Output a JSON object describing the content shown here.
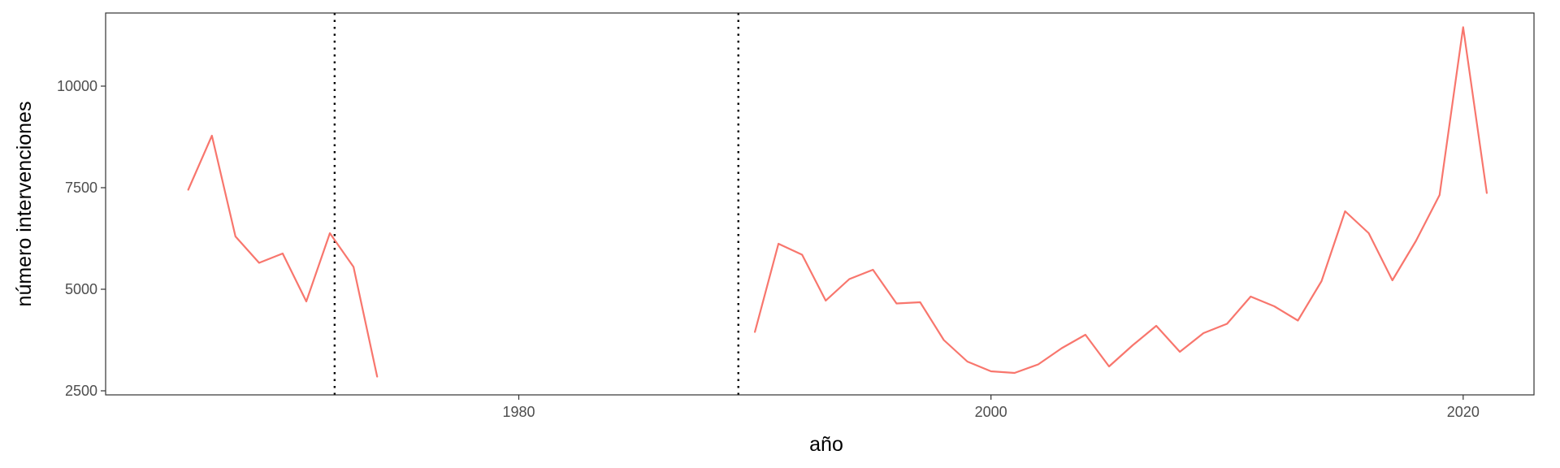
{
  "chart_data": {
    "type": "line",
    "title": "",
    "xlabel": "año",
    "ylabel": "número intervenciones",
    "xlim": [
      1962.5,
      2023
    ],
    "ylim": [
      2400,
      11800
    ],
    "x_ticks": [
      1980,
      2000,
      2020
    ],
    "y_ticks": [
      2500,
      5000,
      7500,
      10000
    ],
    "y_tick_labels": [
      "2500",
      "5000",
      "7500",
      "10000"
    ],
    "grid": false,
    "legend": "none",
    "vlines": [
      {
        "x": 1972.2,
        "style": "dotted",
        "color": "#000000"
      },
      {
        "x": 1989.3,
        "style": "dotted",
        "color": "#000000"
      }
    ],
    "series": [
      {
        "color": "#F8766D",
        "segments": [
          {
            "x": [
              1966,
              1967,
              1968,
              1969,
              1970,
              1971,
              1972,
              1973,
              1974,
              1975,
              1976,
              1977,
              1978,
              1979,
              1980,
              1981,
              1982,
              1983,
              1984,
              1985,
              1986,
              1987,
              1988,
              1989,
              1990,
              1991,
              1992,
              1993,
              1994,
              1995,
              1996,
              1997,
              1998,
              1999,
              2000,
              2001,
              2002,
              2003,
              2004,
              2005,
              2006,
              2007,
              2008,
              2009,
              2010,
              2011,
              2012,
              2013,
              2014,
              2015,
              2016,
              2017,
              2018,
              2019,
              2020,
              2021
            ],
            "y": [
              7450,
              8780,
              6300,
              5650,
              5880,
              4700,
              6380,
              5550,
              2850,
              null,
              null,
              null,
              null,
              null,
              null,
              null,
              null,
              null,
              null,
              null,
              null,
              null,
              null,
              null,
              3950,
              6120,
              5850,
              4720,
              5250,
              5480,
              4650,
              4680,
              3750,
              3220,
              2980,
              2940,
              3150,
              3550,
              3880,
              3100,
              3620,
              4100,
              3460,
              3920,
              4150,
              4820,
              4580,
              4230,
              5200,
              6920,
              6380,
              5220,
              6190,
              7320,
              11450,
              7370
            ]
          }
        ]
      }
    ]
  }
}
